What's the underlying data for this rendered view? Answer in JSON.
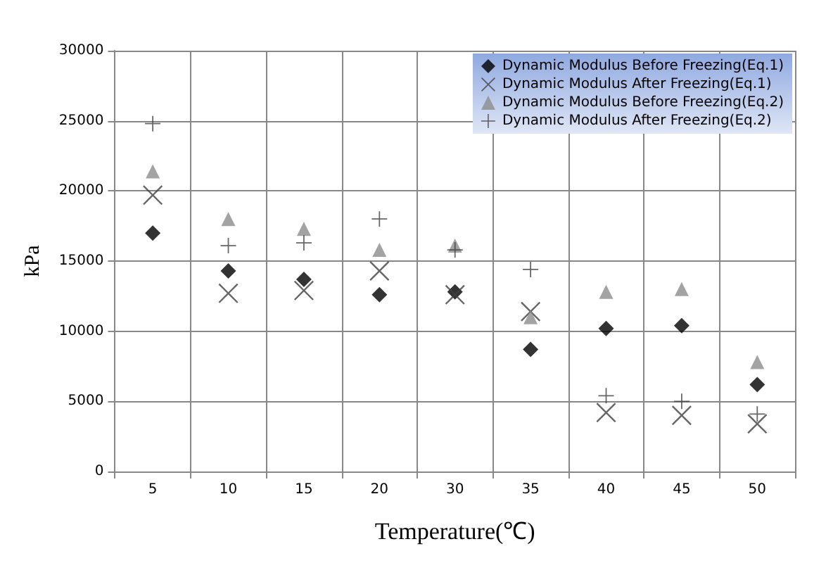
{
  "chart_data": {
    "type": "scatter",
    "xlabel": "Temperature(℃)",
    "ylabel": "kPa",
    "categories": [
      "5",
      "10",
      "15",
      "20",
      "30",
      "35",
      "40",
      "45",
      "50"
    ],
    "series": [
      {
        "name": "Dynamic Modulus Before Freezing(Eq.1)",
        "color": "#000000",
        "marker": "diamond",
        "values": [
          17000,
          14300,
          13700,
          12600,
          12800,
          8700,
          10200,
          10400,
          6200
        ]
      },
      {
        "name": "Dynamic Modulus After Freezing(Eq.1)",
        "color": "#404040",
        "marker": "cross",
        "values": [
          19700,
          12700,
          12900,
          14300,
          12600,
          11400,
          4200,
          4000,
          3400
        ]
      },
      {
        "name": "Dynamic Modulus Before Freezing(Eq.2)",
        "color": "#8c8c8c",
        "marker": "triangle",
        "values": [
          21400,
          18000,
          17300,
          15800,
          16100,
          11000,
          12800,
          13000,
          7800
        ]
      },
      {
        "name": "Dynamic Modulus After Freezing(Eq.2)",
        "color": "#404040",
        "marker": "plus",
        "values": [
          24800,
          16100,
          16300,
          18000,
          15800,
          14400,
          5400,
          5000,
          4100
        ]
      }
    ],
    "ylim": [
      0,
      30000
    ],
    "yticks": [
      0,
      5000,
      10000,
      15000,
      20000,
      25000,
      30000
    ],
    "grid": true,
    "legend": "top right"
  }
}
